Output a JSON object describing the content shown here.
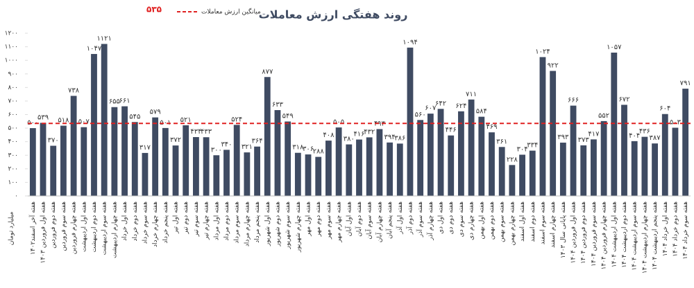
{
  "chart_data": {
    "type": "bar",
    "title": "روند هفتگی ارزش معاملات",
    "y_label": "میلیارد تومان",
    "color": "#3f4b62",
    "grid": false,
    "mean": {
      "name": "میانگین ارزش معاملات",
      "value": 535,
      "label": "۵۳۵",
      "color": "#e02020"
    },
    "categories": [
      "هفته آخر اسفند۱۴۰۲",
      "هفته اول فروردین ۱۴۰۳",
      "هفته دوم فروردین",
      "هفته سوم فروردین",
      "هفته چهارم فروردین",
      "هفته اول اردیبهشت",
      "هفته دوم اردیبهشت",
      "هفته سوم اردیبهشت",
      "هفته چهارم اردیبهشت",
      "هفته اول خرداد",
      "هفته دوم خرداد",
      "هفته سوم خرداد",
      "هفته چهارم خرداد",
      "هفته پنجم خرداد",
      "هفته اول تیر",
      "هفته دوم تیر",
      "هفته سوم تیر",
      "هفته چهارم تیر",
      "هفته اول مرداد",
      "هفته دوم مرداد",
      "هفته سوم مرداد",
      "هفته چهارم مرداد",
      "هفته پنجم مرداد",
      "هفته اول شهریور",
      "هفته دوم شهریور",
      "هفته سوم شهریور",
      "هفته چهارم شهریور",
      "هفته اول مهر",
      "هفته دوم مهر",
      "هفته سوم مهر",
      "هفته چهارم مهر",
      "هفته اول آبان",
      "هفته دوم آبان",
      "هفته سوم آبان",
      "هفته چهارم آبان",
      "هفته پنجم آبان",
      "هفته اول آذر",
      "هفته دوم آذر",
      "هفته سوم آذر",
      "هفته چهارم آذر",
      "هفته اول دی",
      "هفته دوم دی",
      "هفته سوم دی",
      "هفته چهارم دی",
      "هفته اول بهمن",
      "هفته دوم بهمن",
      "هفته سوم بهمن",
      "هفته چهارم بهمن",
      "هفته اول اسفند",
      "هفته دوم اسفند",
      "هفته سوم اسفند",
      "هفته چهارم اسفند",
      "هفته پایانی سال ۱۴۰۳",
      "هفته اول فروردین ۱۴۰۴",
      "هفته دوم فروردین ۱۴۰۴",
      "هفته سوم فروردین ۱۴۰۴",
      "هفته چهارم فروردین ۱۴۰۴",
      "هفته اول اردیبهشت ۱۴۰۴",
      "هفته دوم اردیبهشت ۱۴۰۴",
      "هفته سوم اردیبهشت ۱۴۰۴",
      "هفته چهارم اردیبهشت ۱۴۰۴",
      "هفته پنجم اردیبهشت ۱۴۰۴",
      "هفته اول خرداد ۱۴۰۴",
      "هفته دوم خرداد ۱۴۰۴",
      "هفته سوم خرداد ۱۴۰۴"
    ],
    "values": [
      500,
      539,
      370,
      518,
      738,
      507,
      1047,
      1121,
      655,
      661,
      545,
      317,
      579,
      501,
      372,
      521,
      434,
      433,
      300,
      340,
      524,
      321,
      364,
      877,
      633,
      549,
      318,
      306,
      288,
      408,
      505,
      380,
      416,
      432,
      493,
      394,
      386,
      1094,
      560,
      607,
      642,
      446,
      624,
      711,
      584,
      469,
      361,
      228,
      304,
      334,
      1024,
      922,
      393,
      666,
      373,
      417,
      552,
      1057,
      672,
      404,
      436,
      387,
      604,
      503,
      791
    ],
    "value_labels": [
      "۵۰۰",
      "۵۳۹",
      "۳۷۰",
      "۵۱۸",
      "۷۳۸",
      "۵۰۷",
      "۱۰۴۷",
      "۱۱۲۱",
      "۶۵۵",
      "۶۶۱",
      "۵۴۵",
      "۳۱۷",
      "۵۷۹",
      "۵۰۱",
      "۳۷۲",
      "۵۲۱",
      "۴۳۴",
      "۴۳۳",
      "۳۰۰",
      "۳۴۰",
      "۵۲۴",
      "۳۲۱",
      "۳۶۴",
      "۸۷۷",
      "۶۳۳",
      "۵۴۹",
      "۳۱۸",
      "۳۰۶",
      "۲۸۸",
      "۴۰۸",
      "۵۰۵",
      "۳۸۰",
      "۴۱۶",
      "۴۳۲",
      "۴۹۳",
      "۳۹۴",
      "۳۸۶",
      "۱۰۹۴",
      "۵۶۰",
      "۶۰۷",
      "۶۴۲",
      "۴۴۶",
      "۶۲۴",
      "۷۱۱",
      "۵۸۴",
      "۴۶۹",
      "۳۶۱",
      "۲۲۸",
      "۳۰۴",
      "۳۳۴",
      "۱۰۲۴",
      "۹۲۲",
      "۳۹۳",
      "۶۶۶",
      "۳۷۳",
      "۴۱۷",
      "۵۵۲",
      "۱۰۵۷",
      "۶۷۲",
      "۴۰۴",
      "۴۳۶",
      "۳۸۷",
      "۶۰۴",
      "۵۰۳",
      "۷۹۱"
    ],
    "ylim": [
      0,
      1200
    ],
    "yticks": [
      {
        "value": 0,
        "label": "۰"
      },
      {
        "value": 100,
        "label": "۱۰۰"
      },
      {
        "value": 200,
        "label": "۲۰۰"
      },
      {
        "value": 300,
        "label": "۳۰۰"
      },
      {
        "value": 400,
        "label": "۴۰۰"
      },
      {
        "value": 500,
        "label": "۵۰۰"
      },
      {
        "value": 600,
        "label": "۶۰۰"
      },
      {
        "value": 700,
        "label": "۷۰۰"
      },
      {
        "value": 800,
        "label": "۸۰۰"
      },
      {
        "value": 900,
        "label": "۹۰۰"
      },
      {
        "value": 1000,
        "label": "۱۰۰۰"
      },
      {
        "value": 1100,
        "label": "۱۱۰۰"
      },
      {
        "value": 1200,
        "label": "۱۲۰۰"
      }
    ]
  }
}
